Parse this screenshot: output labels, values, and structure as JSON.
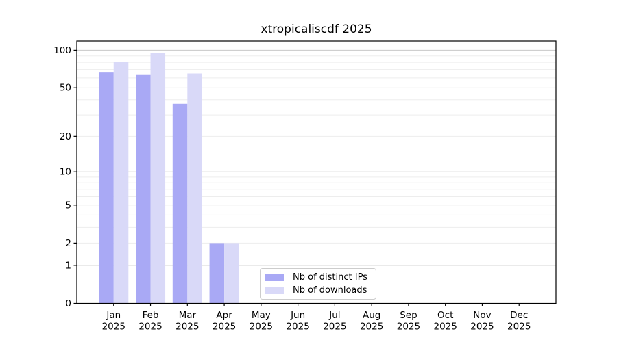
{
  "chart_data": {
    "type": "bar",
    "title": "xtropicaliscdf 2025",
    "scale": "log10(value+1)",
    "categories": [
      "Jan",
      "Feb",
      "Mar",
      "Apr",
      "May",
      "Jun",
      "Jul",
      "Aug",
      "Sep",
      "Oct",
      "Nov",
      "Dec"
    ],
    "year_label": "2025",
    "series": [
      {
        "name": "Nb of distinct IPs",
        "color": "#a9a9f5",
        "values": [
          67,
          64,
          37,
          2,
          0,
          0,
          0,
          0,
          0,
          0,
          0,
          0
        ]
      },
      {
        "name": "Nb of downloads",
        "color": "#d9d9f8",
        "values": [
          81,
          95,
          65,
          2,
          0,
          0,
          0,
          0,
          0,
          0,
          0,
          0
        ]
      }
    ],
    "y_ticks": [
      0,
      1,
      2,
      5,
      10,
      20,
      50,
      100
    ],
    "ylim": [
      0,
      119
    ],
    "xlabel": "",
    "ylabel": "",
    "grid": "horizontal",
    "legend_position": "inside-bottom-center"
  },
  "colors": {
    "background": "#ffffff",
    "axis": "#000000",
    "grid_major": "#c8c8c8",
    "grid_minor": "#ededed",
    "legend_border": "#cccccc"
  }
}
